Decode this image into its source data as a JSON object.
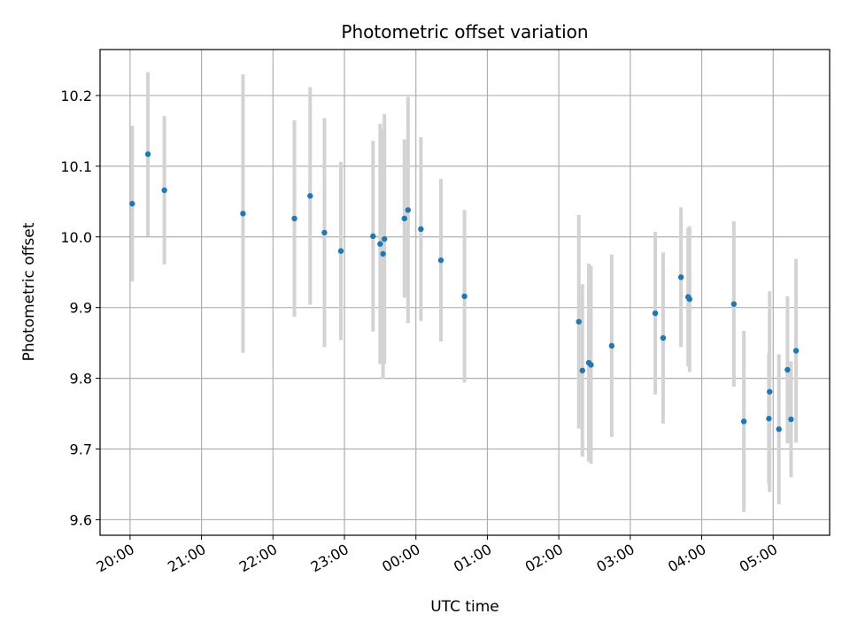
{
  "chart_data": {
    "type": "scatter",
    "title": "Photometric offset variation",
    "xlabel": "UTC time",
    "ylabel": "Photometric offset",
    "x_tick_labels": [
      "20:00",
      "21:00",
      "22:00",
      "23:00",
      "00:00",
      "01:00",
      "02:00",
      "03:00",
      "04:00",
      "05:00"
    ],
    "x_tick_hours": [
      20,
      21,
      22,
      23,
      24,
      25,
      26,
      27,
      28,
      29
    ],
    "xlim_hours": [
      19.58,
      29.79
    ],
    "y_ticks": [
      9.6,
      9.7,
      9.8,
      9.9,
      10.0,
      10.1,
      10.2
    ],
    "y_tick_labels": [
      "9.6",
      "9.7",
      "9.8",
      "9.9",
      "10.0",
      "10.1",
      "10.2"
    ],
    "ylim": [
      9.578,
      10.265
    ],
    "grid": true,
    "legend": "none",
    "colors": {
      "point": "#1f77b4",
      "errorbar": "#d3d3d3",
      "grid": "#b0b0b0"
    },
    "points": [
      {
        "t": 20.03,
        "y": 10.047,
        "err": 0.11
      },
      {
        "t": 20.25,
        "y": 10.117,
        "err": 0.116
      },
      {
        "t": 20.48,
        "y": 10.066,
        "err": 0.105
      },
      {
        "t": 21.58,
        "y": 10.033,
        "err": 0.197
      },
      {
        "t": 22.3,
        "y": 10.026,
        "err": 0.139
      },
      {
        "t": 22.52,
        "y": 10.058,
        "err": 0.154
      },
      {
        "t": 22.72,
        "y": 10.006,
        "err": 0.162
      },
      {
        "t": 22.95,
        "y": 9.98,
        "err": 0.126
      },
      {
        "t": 23.4,
        "y": 10.001,
        "err": 0.135
      },
      {
        "t": 23.5,
        "y": 9.99,
        "err": 0.17
      },
      {
        "t": 23.54,
        "y": 9.976,
        "err": 0.177
      },
      {
        "t": 23.56,
        "y": 9.997,
        "err": 0.177
      },
      {
        "t": 23.84,
        "y": 10.026,
        "err": 0.112
      },
      {
        "t": 23.89,
        "y": 10.038,
        "err": 0.16
      },
      {
        "t": 24.07,
        "y": 10.011,
        "err": 0.13
      },
      {
        "t": 24.35,
        "y": 9.967,
        "err": 0.115
      },
      {
        "t": 24.68,
        "y": 9.916,
        "err": 0.122
      },
      {
        "t": 26.28,
        "y": 9.88,
        "err": 0.151
      },
      {
        "t": 26.33,
        "y": 9.811,
        "err": 0.122
      },
      {
        "t": 26.42,
        "y": 9.822,
        "err": 0.14
      },
      {
        "t": 26.45,
        "y": 9.819,
        "err": 0.14
      },
      {
        "t": 26.74,
        "y": 9.846,
        "err": 0.129
      },
      {
        "t": 27.35,
        "y": 9.892,
        "err": 0.115
      },
      {
        "t": 27.46,
        "y": 9.857,
        "err": 0.121
      },
      {
        "t": 27.71,
        "y": 9.943,
        "err": 0.099
      },
      {
        "t": 27.81,
        "y": 9.915,
        "err": 0.098
      },
      {
        "t": 27.83,
        "y": 9.912,
        "err": 0.103
      },
      {
        "t": 28.45,
        "y": 9.905,
        "err": 0.117
      },
      {
        "t": 28.59,
        "y": 9.739,
        "err": 0.128
      },
      {
        "t": 28.94,
        "y": 9.743,
        "err": 0.093
      },
      {
        "t": 28.95,
        "y": 9.781,
        "err": 0.142
      },
      {
        "t": 29.08,
        "y": 9.728,
        "err": 0.106
      },
      {
        "t": 29.2,
        "y": 9.812,
        "err": 0.104
      },
      {
        "t": 29.25,
        "y": 9.742,
        "err": 0.082
      },
      {
        "t": 29.32,
        "y": 9.839,
        "err": 0.13
      }
    ]
  }
}
